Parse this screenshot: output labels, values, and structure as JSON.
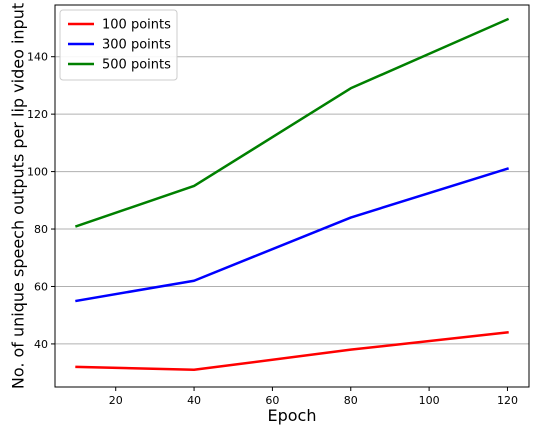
{
  "chart_data": {
    "type": "line",
    "title": "",
    "xlabel": "Epoch",
    "ylabel": "No. of unique speech outputs per lip video input",
    "x": [
      10,
      40,
      80,
      120
    ],
    "series": [
      {
        "name": "100 points",
        "color": "#ff0000",
        "values": [
          32,
          31,
          38,
          44
        ]
      },
      {
        "name": "300 points",
        "color": "#0000ff",
        "values": [
          55,
          62,
          84,
          101
        ]
      },
      {
        "name": "500 points",
        "color": "#008000",
        "values": [
          81,
          95,
          129,
          153
        ]
      }
    ],
    "xlim": [
      4.5,
      125.5
    ],
    "ylim": [
      25,
      158
    ],
    "xticks": [
      20,
      40,
      60,
      80,
      100,
      120
    ],
    "yticks": [
      40,
      60,
      80,
      100,
      120,
      140
    ],
    "grid": {
      "y": true,
      "x": false,
      "color": "#b0b0b0"
    },
    "legend": {
      "position": "top-left"
    }
  }
}
